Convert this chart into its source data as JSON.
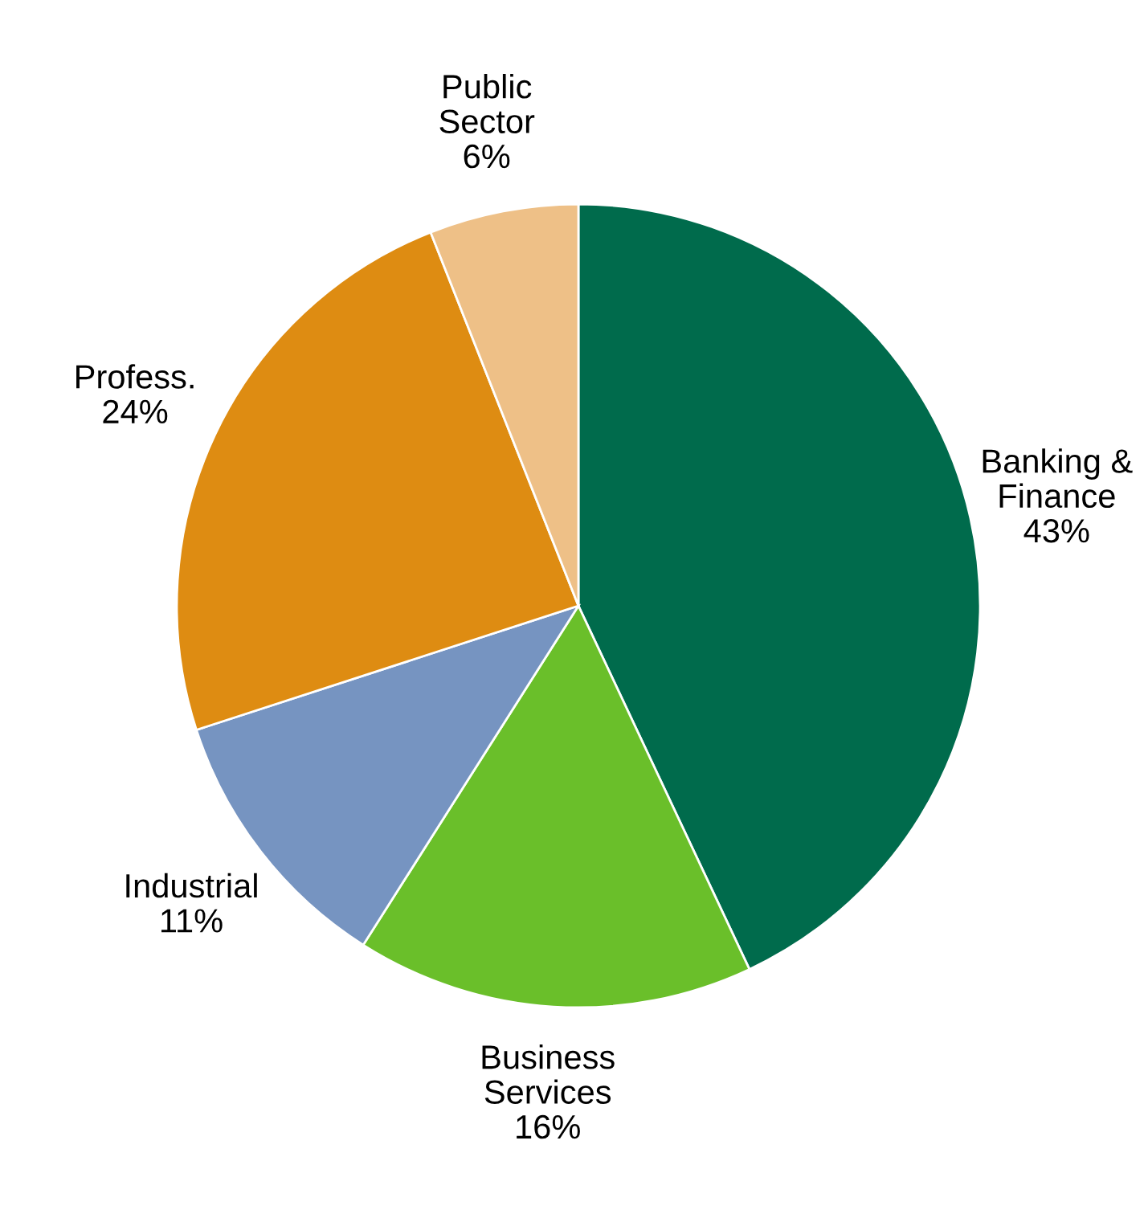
{
  "chart_data": {
    "type": "pie",
    "categories": [
      "Banking &\nFinance",
      "Business\nServices",
      "Industrial",
      "Profess.",
      "Public\nSector"
    ],
    "values": [
      43,
      16,
      11,
      24,
      6
    ],
    "value_labels": [
      "43%",
      "16%",
      "11%",
      "24%",
      "6%"
    ],
    "colors": [
      "#006b4c",
      "#6abf2a",
      "#7694c1",
      "#de8c12",
      "#eec087"
    ]
  }
}
